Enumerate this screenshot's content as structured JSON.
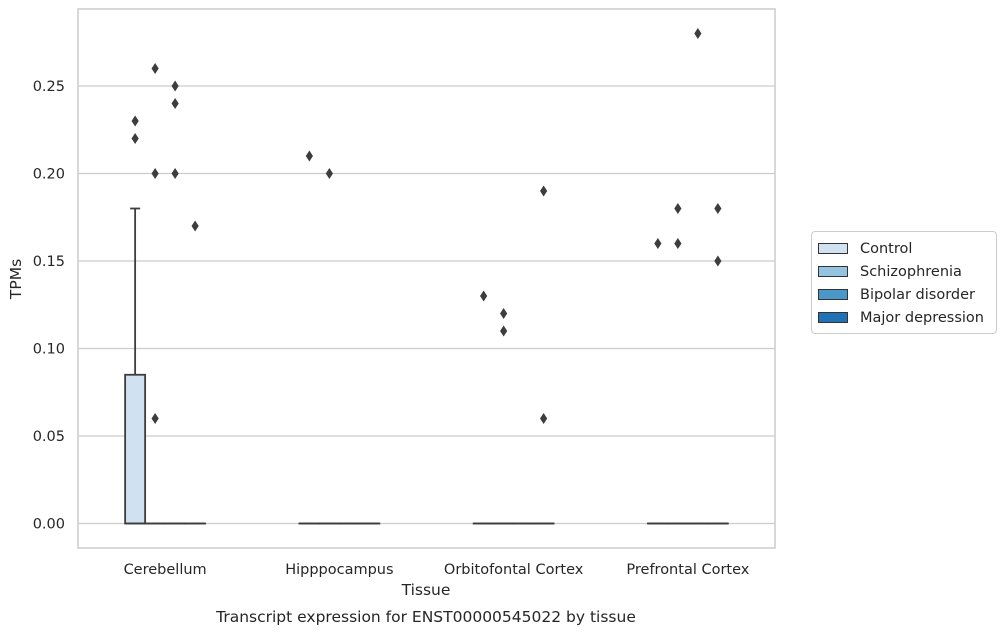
{
  "chart_data": {
    "type": "box",
    "title": "",
    "caption": "Transcript expression for ENST00000545022 by tissue",
    "xlabel": "Tissue",
    "ylabel": "TPMs",
    "ylim": [
      -0.014,
      0.294
    ],
    "yticks": [
      "0.00",
      "0.05",
      "0.10",
      "0.15",
      "0.20",
      "0.25"
    ],
    "ytick_values": [
      0,
      0.05,
      0.1,
      0.15,
      0.2,
      0.25
    ],
    "grid": "horizontal",
    "legend_position": "right",
    "categories": [
      "Cerebellum",
      "Hipppocampus",
      "Orbitofontal Cortex",
      "Prefrontal Cortex"
    ],
    "series": [
      {
        "name": "Control",
        "color": "#d0e1f2",
        "boxes": [
          {
            "q1": 0,
            "median": 0,
            "q3": 0.085,
            "whisker_low": 0,
            "whisker_high": 0.18,
            "outliers": [
              0.23,
              0.22
            ]
          },
          {
            "q1": 0,
            "median": 0,
            "q3": 0,
            "whisker_low": 0,
            "whisker_high": 0,
            "outliers": [
              0.21
            ]
          },
          {
            "q1": 0,
            "median": 0,
            "q3": 0,
            "whisker_low": 0,
            "whisker_high": 0,
            "outliers": [
              0.13
            ]
          },
          {
            "q1": 0,
            "median": 0,
            "q3": 0,
            "whisker_low": 0,
            "whisker_high": 0,
            "outliers": [
              0.16
            ]
          }
        ]
      },
      {
        "name": "Schizophrenia",
        "color": "#94c4df",
        "boxes": [
          {
            "q1": 0,
            "median": 0,
            "q3": 0,
            "whisker_low": 0,
            "whisker_high": 0,
            "outliers": [
              0.26,
              0.2,
              0.06
            ]
          },
          {
            "q1": 0,
            "median": 0,
            "q3": 0,
            "whisker_low": 0,
            "whisker_high": 0,
            "outliers": [
              0.2
            ]
          },
          {
            "q1": 0,
            "median": 0,
            "q3": 0,
            "whisker_low": 0,
            "whisker_high": 0,
            "outliers": [
              0.12,
              0.11
            ]
          },
          {
            "q1": 0,
            "median": 0,
            "q3": 0,
            "whisker_low": 0,
            "whisker_high": 0,
            "outliers": [
              0.18,
              0.16
            ]
          }
        ]
      },
      {
        "name": "Bipolar disorder",
        "color": "#4a98c9",
        "boxes": [
          {
            "q1": 0,
            "median": 0,
            "q3": 0,
            "whisker_low": 0,
            "whisker_high": 0,
            "outliers": [
              0.25,
              0.24,
              0.2
            ]
          },
          {
            "q1": 0,
            "median": 0,
            "q3": 0,
            "whisker_low": 0,
            "whisker_high": 0,
            "outliers": []
          },
          {
            "q1": 0,
            "median": 0,
            "q3": 0,
            "whisker_low": 0,
            "whisker_high": 0,
            "outliers": []
          },
          {
            "q1": 0,
            "median": 0,
            "q3": 0,
            "whisker_low": 0,
            "whisker_high": 0,
            "outliers": [
              0.28
            ]
          }
        ]
      },
      {
        "name": "Major depression",
        "color": "#2171b5",
        "boxes": [
          {
            "q1": 0,
            "median": 0,
            "q3": 0,
            "whisker_low": 0,
            "whisker_high": 0,
            "outliers": [
              0.17
            ]
          },
          {
            "q1": 0,
            "median": 0,
            "q3": 0,
            "whisker_low": 0,
            "whisker_high": 0,
            "outliers": []
          },
          {
            "q1": 0,
            "median": 0,
            "q3": 0,
            "whisker_low": 0,
            "whisker_high": 0,
            "outliers": [
              0.19,
              0.06
            ]
          },
          {
            "q1": 0,
            "median": 0,
            "q3": 0,
            "whisker_low": 0,
            "whisker_high": 0,
            "outliers": [
              0.18,
              0.15
            ]
          }
        ]
      }
    ]
  }
}
